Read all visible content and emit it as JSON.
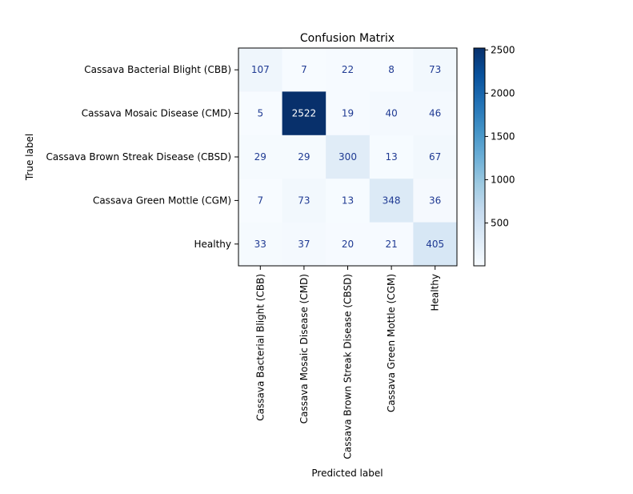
{
  "chart_data": {
    "type": "heatmap",
    "title": "Confusion Matrix",
    "xlabel": "Predicted label",
    "ylabel": "True label",
    "rows": [
      "Cassava Bacterial Blight (CBB)",
      "Cassava Mosaic Disease (CMD)",
      "Cassava Brown Streak Disease (CBSD)",
      "Cassava Green Mottle (CGM)",
      "Healthy"
    ],
    "columns": [
      "Cassava Bacterial Blight (CBB)",
      "Cassava Mosaic Disease (CMD)",
      "Cassava Brown Streak Disease (CBSD)",
      "Cassava Green Mottle (CGM)",
      "Healthy"
    ],
    "values": [
      [
        107,
        7,
        22,
        8,
        73
      ],
      [
        5,
        2522,
        19,
        40,
        46
      ],
      [
        29,
        29,
        300,
        13,
        67
      ],
      [
        7,
        73,
        13,
        348,
        36
      ],
      [
        33,
        37,
        20,
        21,
        405
      ]
    ],
    "colormap": "Blues",
    "colorbar": {
      "min": 5,
      "max": 2522,
      "ticks": [
        500,
        1000,
        1500,
        2000,
        2500
      ]
    },
    "grid": false,
    "legend": "colorbar-right"
  }
}
